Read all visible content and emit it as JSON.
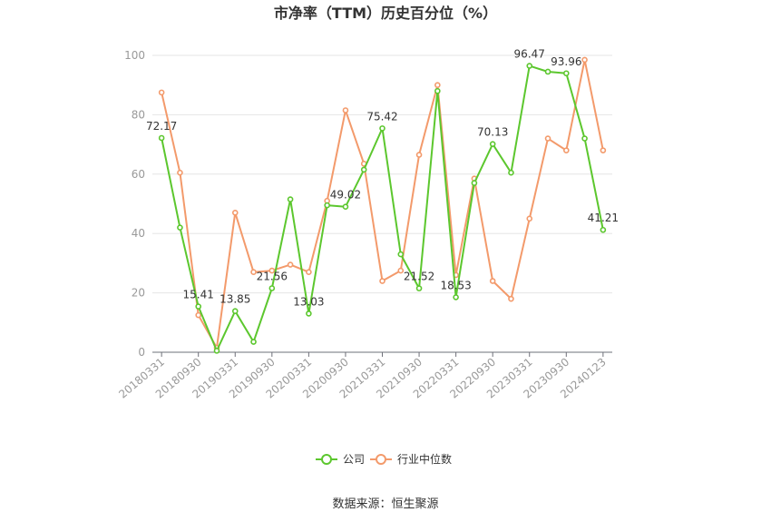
{
  "chart_data": {
    "type": "line",
    "title": "市净率（TTM）历史百分位（%）",
    "source": "数据来源：恒生聚源",
    "ylim": [
      0,
      100
    ],
    "yticks": [
      0,
      20,
      40,
      60,
      80,
      100
    ],
    "grid": true,
    "legend_position": "bottom-center",
    "categories": [
      "20180331",
      "20180630",
      "20180930",
      "20181231",
      "20190331",
      "20190630",
      "20190930",
      "20191231",
      "20200331",
      "20200630",
      "20200930",
      "20201231",
      "20210331",
      "20210630",
      "20210930",
      "20211231",
      "20220331",
      "20220630",
      "20220930",
      "20221231",
      "20230331",
      "20230630",
      "20230930",
      "20231231",
      "20240123"
    ],
    "xtick_labels": [
      "20180331",
      "20180930",
      "20190331",
      "20190930",
      "20200331",
      "20200930",
      "20210331",
      "20210930",
      "20220331",
      "20220930",
      "20230331",
      "20230930",
      "20240123"
    ],
    "series": [
      {
        "name": "公司",
        "color": "#5cc72e",
        "values": [
          72.17,
          42,
          15.41,
          0.5,
          13.85,
          3.5,
          21.56,
          51.5,
          13.03,
          49.5,
          49.02,
          61.5,
          75.42,
          33,
          21.52,
          88,
          18.53,
          57,
          70.13,
          60.5,
          96.47,
          94.5,
          93.96,
          72,
          41.21
        ],
        "labels": {
          "0": "72.17",
          "2": "15.41",
          "4": "13.85",
          "6": "21.56",
          "8": "13.03",
          "10": "49.02",
          "12": "75.42",
          "14": "21.52",
          "16": "18.53",
          "18": "70.13",
          "20": "96.47",
          "22": "93.96",
          "24": "41.21"
        }
      },
      {
        "name": "行业中位数",
        "color": "#f39a6b",
        "values": [
          87.5,
          60.5,
          12.5,
          1.5,
          47,
          27,
          27.5,
          29.5,
          27,
          51,
          81.5,
          63.5,
          24,
          27.5,
          66.5,
          90,
          26,
          58.5,
          24,
          18,
          45,
          72,
          68,
          98.5,
          68
        ]
      }
    ]
  }
}
